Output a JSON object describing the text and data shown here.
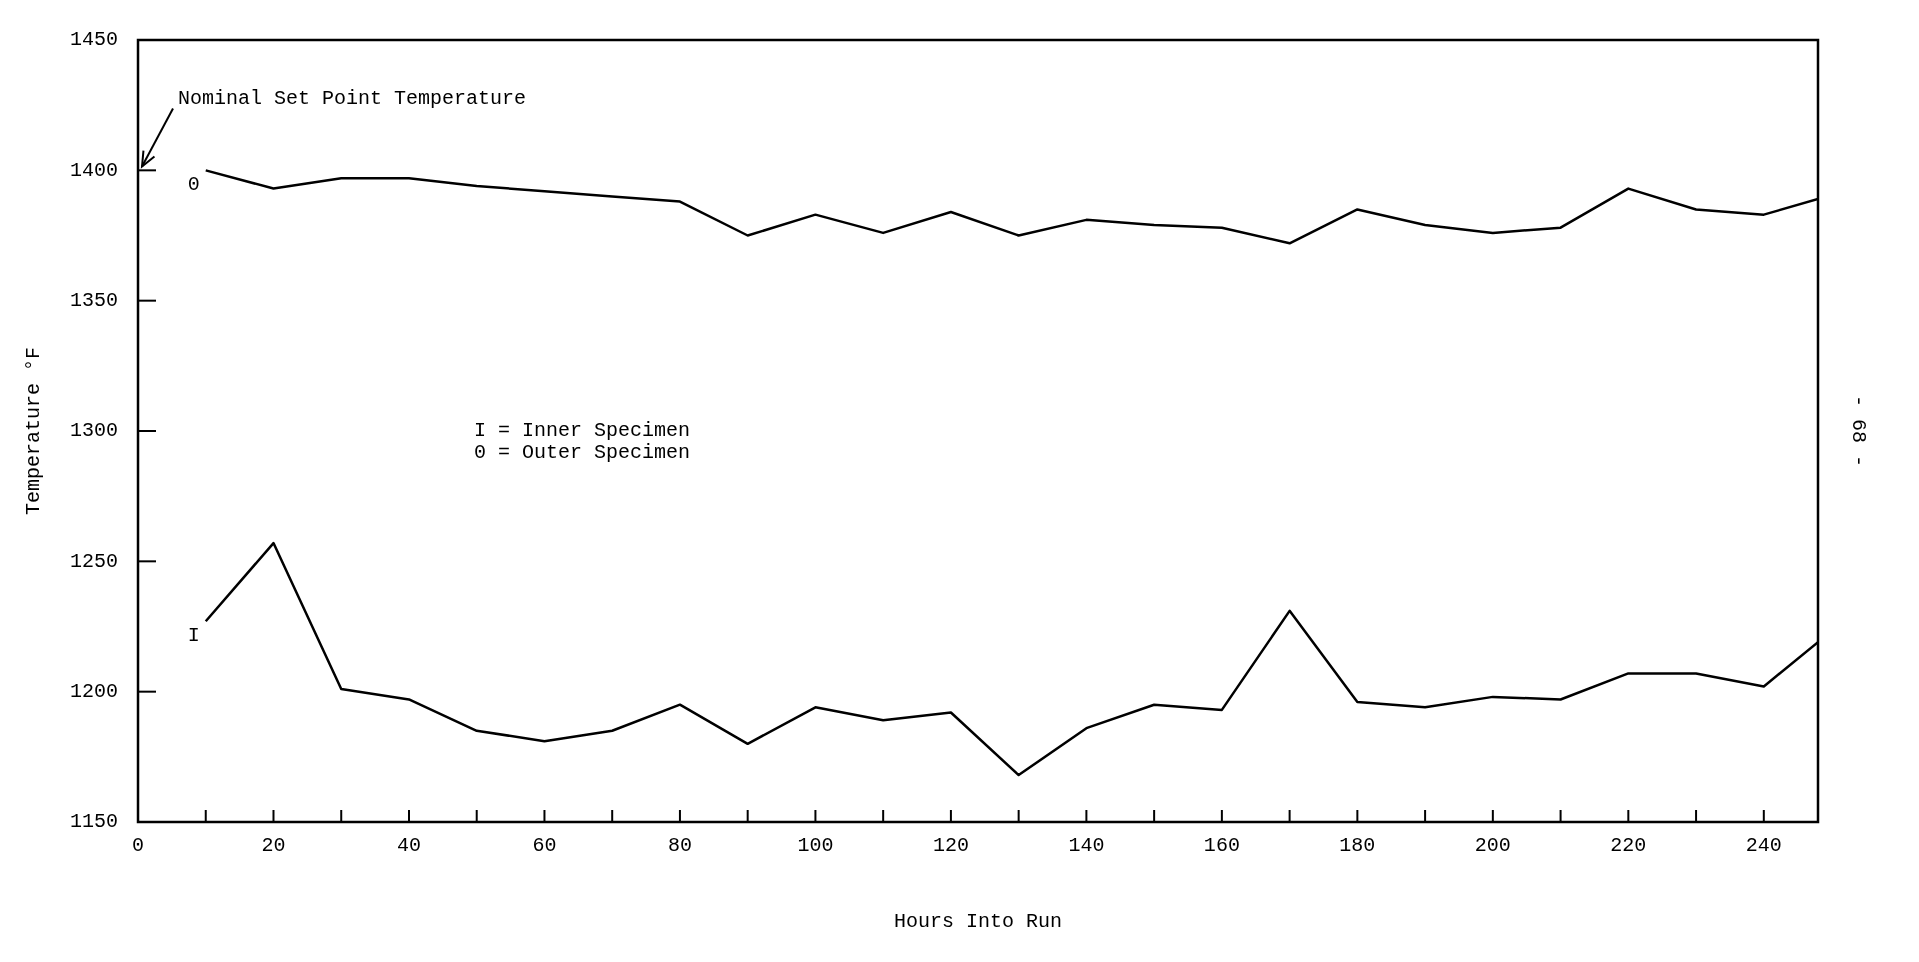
{
  "chart_data": {
    "type": "line",
    "xlabel": "Hours Into Run",
    "ylabel": "Temperature °F",
    "xlim": [
      0,
      248
    ],
    "ylim": [
      1150,
      1450
    ],
    "xticks": [
      0,
      {
        "value": 10,
        "label": null
      },
      20,
      {
        "value": 30,
        "label": null
      },
      40,
      {
        "value": 50,
        "label": null
      },
      60,
      {
        "value": 70,
        "label": null
      },
      80,
      {
        "value": 90,
        "label": null
      },
      100,
      {
        "value": 110,
        "label": null
      },
      120,
      {
        "value": 130,
        "label": null
      },
      140,
      {
        "value": 150,
        "label": null
      },
      160,
      {
        "value": 170,
        "label": null
      },
      180,
      {
        "value": 190,
        "label": null
      },
      200,
      {
        "value": 210,
        "label": null
      },
      220,
      {
        "value": 230,
        "label": null
      },
      240
    ],
    "yticks": [
      1150,
      1200,
      1250,
      1300,
      1350,
      1400,
      1450
    ],
    "marker": "none",
    "line_style": "solid",
    "grid": false,
    "series": [
      {
        "name": "0",
        "color": "#000000",
        "x": [
          10,
          20,
          30,
          40,
          50,
          60,
          70,
          80,
          90,
          100,
          110,
          120,
          130,
          140,
          150,
          160,
          170,
          180,
          190,
          200,
          210,
          220,
          230,
          240,
          248
        ],
        "values": [
          1400,
          1393,
          1397,
          1397,
          1394,
          1392,
          1390,
          1388,
          1375,
          1383,
          1376,
          1384,
          1375,
          1381,
          1379,
          1378,
          1372,
          1385,
          1379,
          1376,
          1378,
          1393,
          1385,
          1383,
          1389
        ]
      },
      {
        "name": "I",
        "color": "#000000",
        "x": [
          10,
          20,
          30,
          40,
          50,
          60,
          70,
          80,
          90,
          100,
          110,
          120,
          130,
          140,
          150,
          160,
          170,
          180,
          190,
          200,
          210,
          220,
          230,
          240,
          248
        ],
        "values": [
          1227,
          1257,
          1201,
          1197,
          1185,
          1181,
          1185,
          1195,
          1180,
          1194,
          1189,
          1192,
          1168,
          1186,
          1195,
          1193,
          1231,
          1196,
          1194,
          1198,
          1197,
          1207,
          1207,
          1202,
          1219
        ]
      }
    ],
    "annotations": [
      "Nominal Set Point Temperature",
      "I = Inner Specimen",
      "0 = Outer Specimen",
      "- 68 -"
    ]
  }
}
